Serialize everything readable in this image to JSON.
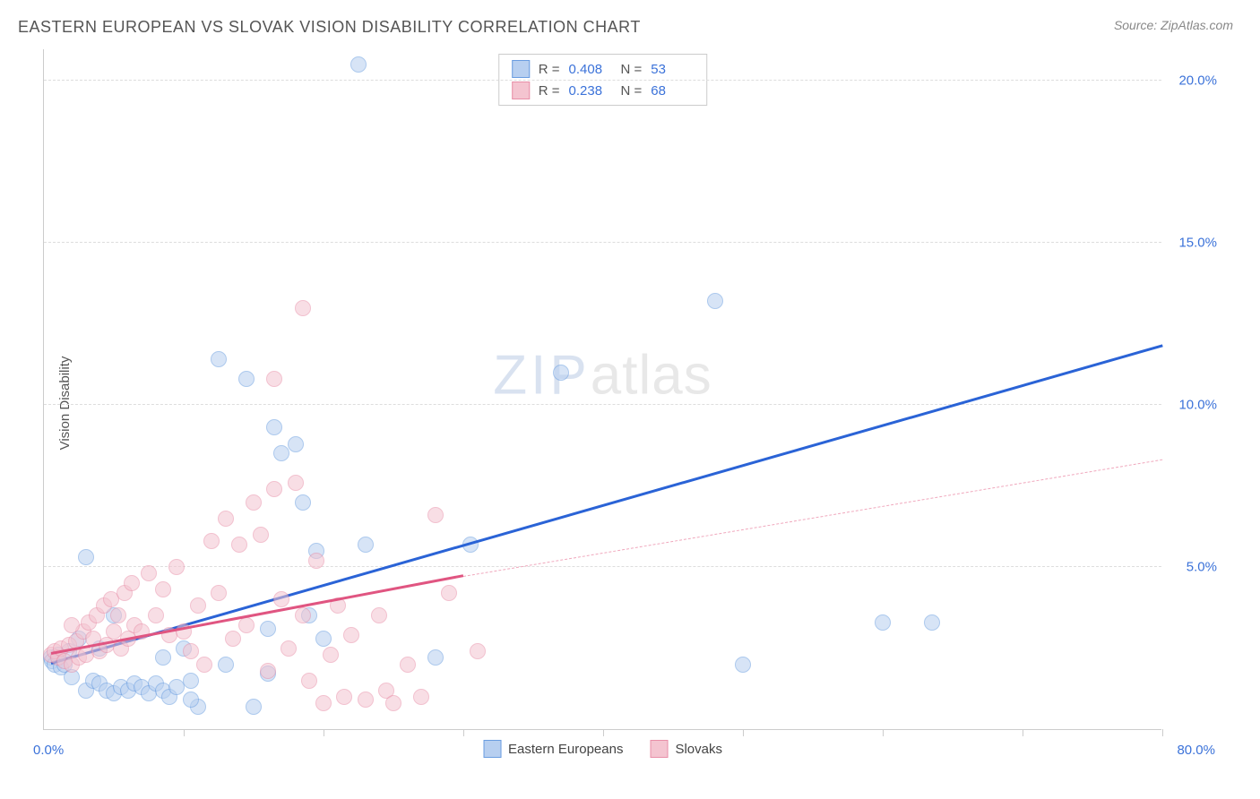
{
  "header": {
    "title": "EASTERN EUROPEAN VS SLOVAK VISION DISABILITY CORRELATION CHART",
    "source": "Source: ZipAtlas.com"
  },
  "watermark": {
    "part1": "ZIP",
    "part2": "atlas"
  },
  "chart": {
    "type": "scatter",
    "y_label": "Vision Disability",
    "x_range": [
      0,
      80
    ],
    "y_range": [
      0,
      21
    ],
    "x_label_min": "0.0%",
    "x_label_max": "80.0%",
    "x_ticks": [
      0,
      10,
      20,
      30,
      40,
      50,
      60,
      70,
      80
    ],
    "y_grid": [
      {
        "value": 5,
        "label": "5.0%"
      },
      {
        "value": 10,
        "label": "10.0%"
      },
      {
        "value": 15,
        "label": "15.0%"
      },
      {
        "value": 20,
        "label": "20.0%"
      }
    ],
    "background_color": "#ffffff",
    "grid_color": "#dddddd",
    "axis_color": "#cccccc",
    "tick_label_color": "#3b72d9",
    "point_radius": 9,
    "point_opacity": 0.55,
    "series": [
      {
        "name": "Eastern Europeans",
        "color_fill": "#b7cff0",
        "color_stroke": "#6a9de0",
        "R": "0.408",
        "N": "53",
        "trend": {
          "x1": 0.5,
          "y1": 2.0,
          "x2": 80,
          "y2": 11.8,
          "color": "#2a63d6",
          "width": 2.8,
          "dash_after_x": 80
        },
        "points": [
          [
            0.5,
            2.2
          ],
          [
            0.6,
            2.1
          ],
          [
            0.8,
            2.0
          ],
          [
            1.0,
            2.3
          ],
          [
            1.2,
            1.9
          ],
          [
            1.5,
            2.0
          ],
          [
            1.8,
            2.4
          ],
          [
            2.0,
            1.6
          ],
          [
            2.5,
            2.8
          ],
          [
            3.0,
            1.2
          ],
          [
            3.5,
            1.5
          ],
          [
            4.0,
            1.4
          ],
          [
            4.5,
            1.2
          ],
          [
            5.0,
            1.1
          ],
          [
            5.5,
            1.3
          ],
          [
            6.0,
            1.2
          ],
          [
            6.5,
            1.4
          ],
          [
            7.0,
            1.3
          ],
          [
            7.5,
            1.1
          ],
          [
            8.0,
            1.4
          ],
          [
            8.5,
            1.2
          ],
          [
            9.0,
            1.0
          ],
          [
            9.5,
            1.3
          ],
          [
            3.0,
            5.3
          ],
          [
            4.0,
            2.5
          ],
          [
            5.0,
            3.5
          ],
          [
            8.5,
            2.2
          ],
          [
            10.0,
            2.5
          ],
          [
            10.5,
            1.5
          ],
          [
            11.0,
            0.7
          ],
          [
            12.5,
            11.4
          ],
          [
            13.0,
            2.0
          ],
          [
            14.5,
            10.8
          ],
          [
            15.0,
            0.7
          ],
          [
            16.0,
            1.7
          ],
          [
            16.0,
            3.1
          ],
          [
            16.5,
            9.3
          ],
          [
            17.0,
            8.5
          ],
          [
            18.0,
            8.8
          ],
          [
            18.5,
            7.0
          ],
          [
            19.0,
            3.5
          ],
          [
            19.5,
            5.5
          ],
          [
            20.0,
            2.8
          ],
          [
            22.5,
            20.5
          ],
          [
            23.0,
            5.7
          ],
          [
            28.0,
            2.2
          ],
          [
            30.5,
            5.7
          ],
          [
            37.0,
            11.0
          ],
          [
            48.0,
            13.2
          ],
          [
            50.0,
            2.0
          ],
          [
            60.0,
            3.3
          ],
          [
            63.5,
            3.3
          ],
          [
            10.5,
            0.9
          ]
        ]
      },
      {
        "name": "Slovaks",
        "color_fill": "#f4c4d0",
        "color_stroke": "#e88fa8",
        "R": "0.238",
        "N": "68",
        "trend": {
          "x1": 0.5,
          "y1": 2.3,
          "x2": 30,
          "y2": 4.7,
          "color": "#e05581",
          "width": 2.5,
          "dash_after_x": 30,
          "dash_x2": 80,
          "dash_y2": 8.3,
          "dash_color": "#f0a8bd"
        },
        "points": [
          [
            0.5,
            2.3
          ],
          [
            0.8,
            2.4
          ],
          [
            1.0,
            2.2
          ],
          [
            1.2,
            2.5
          ],
          [
            1.5,
            2.1
          ],
          [
            1.8,
            2.6
          ],
          [
            2.0,
            2.0
          ],
          [
            2.3,
            2.7
          ],
          [
            2.5,
            2.2
          ],
          [
            2.8,
            3.0
          ],
          [
            3.0,
            2.3
          ],
          [
            3.2,
            3.3
          ],
          [
            3.5,
            2.8
          ],
          [
            3.8,
            3.5
          ],
          [
            4.0,
            2.4
          ],
          [
            4.3,
            3.8
          ],
          [
            4.5,
            2.6
          ],
          [
            4.8,
            4.0
          ],
          [
            5.0,
            3.0
          ],
          [
            5.3,
            3.5
          ],
          [
            5.5,
            2.5
          ],
          [
            5.8,
            4.2
          ],
          [
            6.0,
            2.8
          ],
          [
            6.3,
            4.5
          ],
          [
            6.5,
            3.2
          ],
          [
            7.0,
            3.0
          ],
          [
            7.5,
            4.8
          ],
          [
            8.0,
            3.5
          ],
          [
            8.5,
            4.3
          ],
          [
            9.0,
            2.9
          ],
          [
            9.5,
            5.0
          ],
          [
            10.0,
            3.0
          ],
          [
            10.5,
            2.4
          ],
          [
            11.0,
            3.8
          ],
          [
            11.5,
            2.0
          ],
          [
            12.0,
            5.8
          ],
          [
            12.5,
            4.2
          ],
          [
            13.0,
            6.5
          ],
          [
            13.5,
            2.8
          ],
          [
            14.0,
            5.7
          ],
          [
            14.5,
            3.2
          ],
          [
            15.0,
            7.0
          ],
          [
            15.5,
            6.0
          ],
          [
            16.0,
            1.8
          ],
          [
            16.5,
            7.4
          ],
          [
            16.5,
            10.8
          ],
          [
            17.0,
            4.0
          ],
          [
            17.5,
            2.5
          ],
          [
            18.0,
            7.6
          ],
          [
            18.5,
            3.5
          ],
          [
            18.5,
            13.0
          ],
          [
            19.0,
            1.5
          ],
          [
            19.5,
            5.2
          ],
          [
            20.0,
            0.8
          ],
          [
            20.5,
            2.3
          ],
          [
            21.0,
            3.8
          ],
          [
            21.5,
            1.0
          ],
          [
            22.0,
            2.9
          ],
          [
            23.0,
            0.9
          ],
          [
            24.0,
            3.5
          ],
          [
            24.5,
            1.2
          ],
          [
            25.0,
            0.8
          ],
          [
            26.0,
            2.0
          ],
          [
            27.0,
            1.0
          ],
          [
            28.0,
            6.6
          ],
          [
            29.0,
            4.2
          ],
          [
            31.0,
            2.4
          ],
          [
            2.0,
            3.2
          ]
        ]
      }
    ],
    "bottom_legend": [
      {
        "label": "Eastern Europeans",
        "fill": "#b7cff0",
        "stroke": "#6a9de0"
      },
      {
        "label": "Slovaks",
        "fill": "#f4c4d0",
        "stroke": "#e88fa8"
      }
    ]
  }
}
